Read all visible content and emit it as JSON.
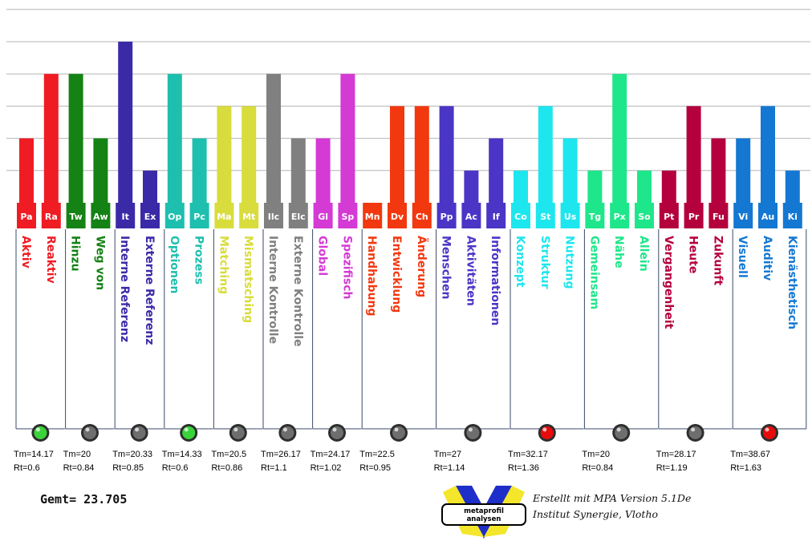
{
  "chart_data": {
    "type": "bar",
    "ylim": [
      0,
      6
    ],
    "grid": true,
    "groups": [
      {
        "tm": "Tm=14.17",
        "rt": "Rt=0.6",
        "lamp": "green-lamp",
        "items": [
          {
            "abbr": "Pa",
            "label": "Aktiv",
            "value": 2,
            "color": "#ef1c24"
          },
          {
            "abbr": "Ra",
            "label": "Reaktiv",
            "value": 4,
            "color": "#ef1c24"
          }
        ]
      },
      {
        "tm": "Tm=20",
        "rt": "Rt=0.84",
        "lamp": "gray-lamp",
        "items": [
          {
            "abbr": "Tw",
            "label": "Hinzu",
            "value": 4,
            "color": "#148214"
          },
          {
            "abbr": "Aw",
            "label": "Weg von",
            "value": 2,
            "color": "#148214"
          }
        ]
      },
      {
        "tm": "Tm=20.33",
        "rt": "Rt=0.85",
        "lamp": "gray-lamp",
        "items": [
          {
            "abbr": "It",
            "label": "Interne Referenz",
            "value": 5,
            "color": "#3b2aa8"
          },
          {
            "abbr": "Ex",
            "label": "Externe Referenz",
            "value": 1,
            "color": "#3b2aa8"
          }
        ]
      },
      {
        "tm": "Tm=14.33",
        "rt": "Rt=0.6",
        "lamp": "green-lamp",
        "items": [
          {
            "abbr": "Op",
            "label": "Optionen",
            "value": 4,
            "color": "#1ebfae"
          },
          {
            "abbr": "Pc",
            "label": "Prozess",
            "value": 2,
            "color": "#1ebfae"
          }
        ]
      },
      {
        "tm": "Tm=20.5",
        "rt": "Rt=0.86",
        "lamp": "gray-lamp",
        "items": [
          {
            "abbr": "Ma",
            "label": "Matching",
            "value": 3,
            "color": "#d8dc3c"
          },
          {
            "abbr": "Mt",
            "label": "Mismatsching",
            "value": 3,
            "color": "#d8dc3c"
          }
        ]
      },
      {
        "tm": "Tm=26.17",
        "rt": "Rt=1.1",
        "lamp": "gray-lamp",
        "items": [
          {
            "abbr": "Ilc",
            "label": "Interne Kontrolle",
            "value": 4,
            "color": "#808080"
          },
          {
            "abbr": "Elc",
            "label": "Externe Kontrolle",
            "value": 2,
            "color": "#808080"
          }
        ]
      },
      {
        "tm": "Tm=24.17",
        "rt": "Rt=1.02",
        "lamp": "gray-lamp",
        "items": [
          {
            "abbr": "Gl",
            "label": "Global",
            "value": 2,
            "color": "#d43ad4"
          },
          {
            "abbr": "Sp",
            "label": "Spezifisch",
            "value": 4,
            "color": "#d43ad4"
          }
        ]
      },
      {
        "tm": "Tm=22.5",
        "rt": "Rt=0.95",
        "lamp": "gray-lamp",
        "items": [
          {
            "abbr": "Mn",
            "label": "Handhabung",
            "value": 0,
            "color": "#f2380f"
          },
          {
            "abbr": "Dv",
            "label": "Entwicklung",
            "value": 3,
            "color": "#f2380f"
          },
          {
            "abbr": "Ch",
            "label": "Änderung",
            "value": 3,
            "color": "#f2380f"
          }
        ]
      },
      {
        "tm": "Tm=27",
        "rt": "Rt=1.14",
        "lamp": "gray-lamp",
        "items": [
          {
            "abbr": "Pp",
            "label": "Menschen",
            "value": 3,
            "color": "#4a35c6"
          },
          {
            "abbr": "Ac",
            "label": "Aktivitäten",
            "value": 1,
            "color": "#4a35c6"
          },
          {
            "abbr": "If",
            "label": "Informationen",
            "value": 2,
            "color": "#4a35c6"
          }
        ]
      },
      {
        "tm": "Tm=32.17",
        "rt": "Rt=1.36",
        "lamp": "red-lamp",
        "items": [
          {
            "abbr": "Co",
            "label": "Konzept",
            "value": 1,
            "color": "#1ee6ee"
          },
          {
            "abbr": "St",
            "label": "Struktur",
            "value": 3,
            "color": "#1ee6ee"
          },
          {
            "abbr": "Us",
            "label": "Nutzung",
            "value": 2,
            "color": "#1ee6ee"
          }
        ]
      },
      {
        "tm": "Tm=20",
        "rt": "Rt=0.84",
        "lamp": "gray-lamp",
        "items": [
          {
            "abbr": "Tg",
            "label": "Gemeinsam",
            "value": 1,
            "color": "#1ee68a"
          },
          {
            "abbr": "Px",
            "label": "Nähe",
            "value": 4,
            "color": "#1ee68a"
          },
          {
            "abbr": "So",
            "label": "Allein",
            "value": 1,
            "color": "#1ee68a"
          }
        ]
      },
      {
        "tm": "Tm=28.17",
        "rt": "Rt=1.19",
        "lamp": "gray-lamp",
        "items": [
          {
            "abbr": "Pt",
            "label": "Vergangenheit",
            "value": 1,
            "color": "#b4003c"
          },
          {
            "abbr": "Pr",
            "label": "Heute",
            "value": 3,
            "color": "#b4003c"
          },
          {
            "abbr": "Fu",
            "label": "Zukunft",
            "value": 2,
            "color": "#b4003c"
          }
        ]
      },
      {
        "tm": "Tm=38.67",
        "rt": "Rt=1.63",
        "lamp": "red-lamp",
        "items": [
          {
            "abbr": "Vi",
            "label": "Visuell",
            "value": 2,
            "color": "#1478d2"
          },
          {
            "abbr": "Au",
            "label": "Auditiv",
            "value": 3,
            "color": "#1478d2"
          },
          {
            "abbr": "Ki",
            "label": "Kienästhetisch",
            "value": 1,
            "color": "#1478d2"
          }
        ]
      }
    ]
  },
  "footer": {
    "gemt": "Gemt= 23.705",
    "credit_line1": "Erstellt mit MPA Version 5.1De",
    "credit_line2": "Institut Synergie, Vlotho",
    "logo_line1": "metaprofil",
    "logo_line2": "analysen"
  }
}
